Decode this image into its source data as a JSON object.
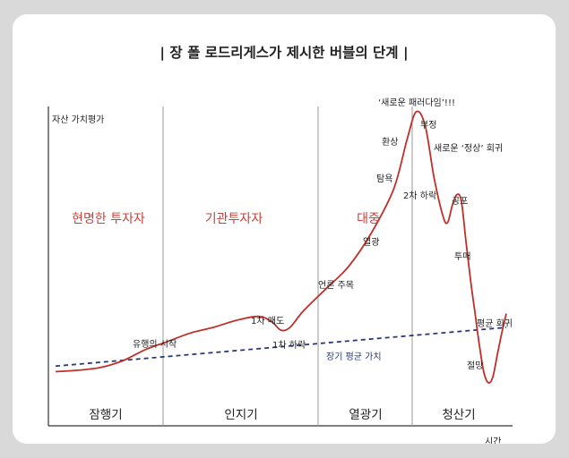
{
  "chart_data": {
    "type": "line",
    "title": "| 장 폴 로드리게스가 제시한 버블의 단계 |",
    "ylabel": "자산 가치평가",
    "xlabel": "시간",
    "grid": false,
    "phases": [
      "잠행기",
      "인지기",
      "열광기",
      "청산기"
    ],
    "participants": [
      "현명한 투자자",
      "기관투자자",
      "대중"
    ],
    "series": [
      {
        "x": [
          0,
          5,
          10,
          15,
          20,
          25,
          30,
          35,
          40,
          45,
          48,
          50,
          52,
          55,
          60,
          65,
          70,
          75,
          78,
          80,
          82,
          84,
          86,
          87,
          88,
          89,
          90,
          91,
          92,
          93,
          94,
          95,
          96,
          97,
          98,
          99,
          100
        ],
        "values": [
          6,
          6.5,
          7.5,
          10,
          14,
          17,
          20,
          22,
          24.5,
          26,
          24,
          21,
          22,
          28,
          36,
          44,
          56,
          72,
          90,
          100,
          95,
          76,
          62,
          60,
          66,
          70,
          68,
          54,
          40,
          28,
          16,
          6,
          2,
          4,
          12,
          20,
          27
        ]
      },
      {
        "name": "장기 평균 가치",
        "x": [
          0,
          100
        ],
        "values": [
          8,
          22
        ]
      }
    ],
    "annotations": [
      "유행의 시작",
      "1차 매도",
      "1차 하락",
      "언론 주목",
      "열광",
      "탐욕",
      "환상",
      "‘새로운 패러다임’!!!",
      "부정",
      "2차 하락",
      "새로운 ‘정상’ 회귀",
      "공포",
      "투매",
      "절망",
      "평균 회귀"
    ],
    "colors": {
      "curve": "#c0302a",
      "mean_line": "#283a7a",
      "dividers": "#999999",
      "participants": "#c9413a",
      "mean_label": "#283a7a"
    }
  }
}
